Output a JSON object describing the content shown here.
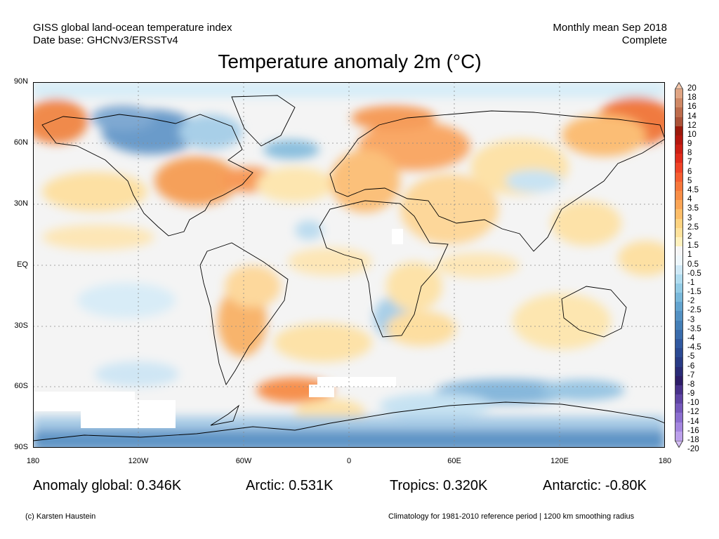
{
  "header": {
    "left_line1": "GISS global land-ocean temperature index",
    "left_line2": "Date base: GHCNv3/ERSSTv4",
    "right_line1": "Monthly mean Sep 2018",
    "right_line2": "Complete"
  },
  "title": "Temperature anomaly 2m (°C)",
  "lat_ticks": [
    "90N",
    "60N",
    "30N",
    "EQ",
    "30S",
    "60S",
    "90S"
  ],
  "lon_ticks": [
    "180",
    "120W",
    "60W",
    "0",
    "60E",
    "120E",
    "180"
  ],
  "stats": {
    "global": "Anomaly global: 0.346K",
    "arctic": "Arctic: 0.531K",
    "tropics": "Tropics: 0.320K",
    "antarctic": "Antarctic: -0.80K"
  },
  "footer": {
    "credit": "(c) Karsten Haustein",
    "note": "Climatology for 1981-2010 reference period | 1200 km smoothing radius"
  },
  "colorbar": {
    "labels": [
      "20",
      "18",
      "16",
      "14",
      "12",
      "10",
      "9",
      "8",
      "7",
      "6",
      "5",
      "4.5",
      "4",
      "3.5",
      "3",
      "2.5",
      "2",
      "1.5",
      "1",
      "0.5",
      "-0.5",
      "-1",
      "-1.5",
      "-2",
      "-2.5",
      "-3",
      "-3.5",
      "-4",
      "-4.5",
      "-5",
      "-6",
      "-7",
      "-8",
      "-9",
      "-10",
      "-12",
      "-14",
      "-16",
      "-18",
      "-20"
    ],
    "colors": [
      "#f2c4a8",
      "#e0a584",
      "#cf8865",
      "#bd6c4c",
      "#ab5238",
      "#9b1a0c",
      "#b4170f",
      "#cc1f14",
      "#e02c1c",
      "#ef4327",
      "#f55e31",
      "#f6773b",
      "#f88e47",
      "#fba556",
      "#fdbd69",
      "#fdd381",
      "#fee29c",
      "#fff1be",
      "#f6f6f6",
      "#eef7fc",
      "#cfe9f6",
      "#b0dcef",
      "#93cbe5",
      "#79b8da",
      "#63a4cf",
      "#5391c3",
      "#447fb7",
      "#3a6cac",
      "#3159a0",
      "#2b4a93",
      "#283b85",
      "#292b76",
      "#2d1d68",
      "#48318a",
      "#5f44a4",
      "#7558bb",
      "#8b6ecf",
      "#a486df",
      "#bca0eb",
      "#d4bdf5"
    ]
  }
}
